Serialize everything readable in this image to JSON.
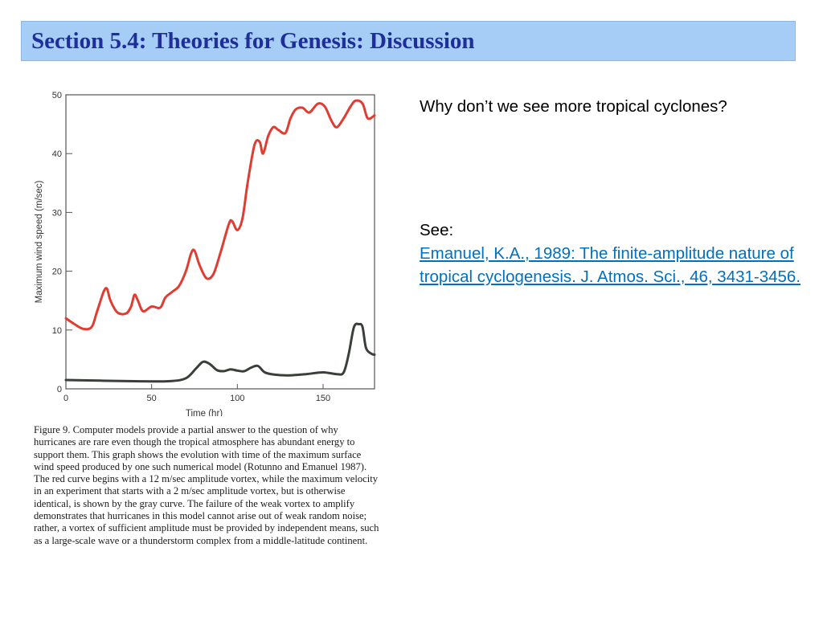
{
  "slide": {
    "title": "Section 5.4: Theories for Genesis: Discussion",
    "question": "Why don’t we see more tropical cyclones?",
    "see_label": "See:",
    "reference_link": "Emanuel, K.A., 1989:  The finite-amplitude nature of tropical cyclogenesis.  J. Atmos. Sci., 46, 3431-3456."
  },
  "figure": {
    "caption": "Figure 9. Computer models provide a partial answer to the question of why hurricanes are rare even though the tropical atmosphere has abundant energy to support them. This graph shows the evolution with time of the maximum surface wind speed produced by one such numerical model (Rotunno and Emanuel 1987). The red curve begins with a 12 m/sec amplitude vortex, while the maximum velocity in an experiment that starts with a 2 m/sec amplitude vortex, but is otherwise identical, is shown by the gray curve. The failure of the weak vortex to amplify demonstrates that hurricanes in this model cannot arise out of weak random noise; rather, a vortex of sufficient amplitude must be provided by independent means, such as a large-scale wave or a thunderstorm complex from a middle-latitude continent."
  },
  "chart_data": {
    "type": "line",
    "xlabel": "Time (hr)",
    "ylabel": "Maximum wind speed (m/sec)",
    "xlim": [
      0,
      180
    ],
    "ylim": [
      0,
      50
    ],
    "x_ticks": [
      0,
      50,
      100,
      150
    ],
    "y_ticks": [
      0,
      10,
      20,
      30,
      40,
      50
    ],
    "grid": false,
    "series": [
      {
        "color": "#e03c31",
        "points": [
          [
            0,
            12
          ],
          [
            5,
            11
          ],
          [
            10,
            10.2
          ],
          [
            15,
            10.5
          ],
          [
            18,
            13
          ],
          [
            22,
            16.5
          ],
          [
            24,
            17
          ],
          [
            26,
            15
          ],
          [
            30,
            13
          ],
          [
            35,
            12.8
          ],
          [
            38,
            14
          ],
          [
            40,
            16
          ],
          [
            42,
            15
          ],
          [
            45,
            13.2
          ],
          [
            50,
            14
          ],
          [
            55,
            13.8
          ],
          [
            58,
            15.5
          ],
          [
            62,
            16.5
          ],
          [
            66,
            17.5
          ],
          [
            70,
            20
          ],
          [
            73,
            23
          ],
          [
            75,
            23.5
          ],
          [
            78,
            21
          ],
          [
            82,
            18.8
          ],
          [
            86,
            19.5
          ],
          [
            90,
            23
          ],
          [
            95,
            28
          ],
          [
            97,
            28.5
          ],
          [
            100,
            27
          ],
          [
            103,
            29
          ],
          [
            106,
            35
          ],
          [
            110,
            41.5
          ],
          [
            113,
            42
          ],
          [
            115,
            40
          ],
          [
            118,
            43
          ],
          [
            121,
            44.5
          ],
          [
            124,
            44
          ],
          [
            128,
            43.5
          ],
          [
            131,
            46
          ],
          [
            134,
            47.5
          ],
          [
            138,
            47.8
          ],
          [
            142,
            47
          ],
          [
            147,
            48.5
          ],
          [
            151,
            48
          ],
          [
            155,
            45.5
          ],
          [
            158,
            44.5
          ],
          [
            162,
            46
          ],
          [
            166,
            48
          ],
          [
            169,
            49
          ],
          [
            173,
            48.5
          ],
          [
            176,
            46
          ],
          [
            180,
            46.5
          ]
        ]
      },
      {
        "color": "#3a3f3a",
        "points": [
          [
            0,
            1.5
          ],
          [
            20,
            1.4
          ],
          [
            40,
            1.3
          ],
          [
            60,
            1.3
          ],
          [
            70,
            1.8
          ],
          [
            76,
            3.5
          ],
          [
            80,
            4.6
          ],
          [
            84,
            4.2
          ],
          [
            88,
            3.2
          ],
          [
            92,
            3
          ],
          [
            96,
            3.3
          ],
          [
            100,
            3.1
          ],
          [
            104,
            3
          ],
          [
            108,
            3.6
          ],
          [
            112,
            3.9
          ],
          [
            116,
            2.8
          ],
          [
            122,
            2.4
          ],
          [
            130,
            2.3
          ],
          [
            140,
            2.5
          ],
          [
            150,
            2.8
          ],
          [
            158,
            2.5
          ],
          [
            162,
            2.8
          ],
          [
            165,
            6
          ],
          [
            168,
            10.5
          ],
          [
            171,
            11
          ],
          [
            173,
            10.5
          ],
          [
            175,
            7
          ],
          [
            178,
            6
          ],
          [
            180,
            5.8
          ]
        ]
      }
    ]
  }
}
